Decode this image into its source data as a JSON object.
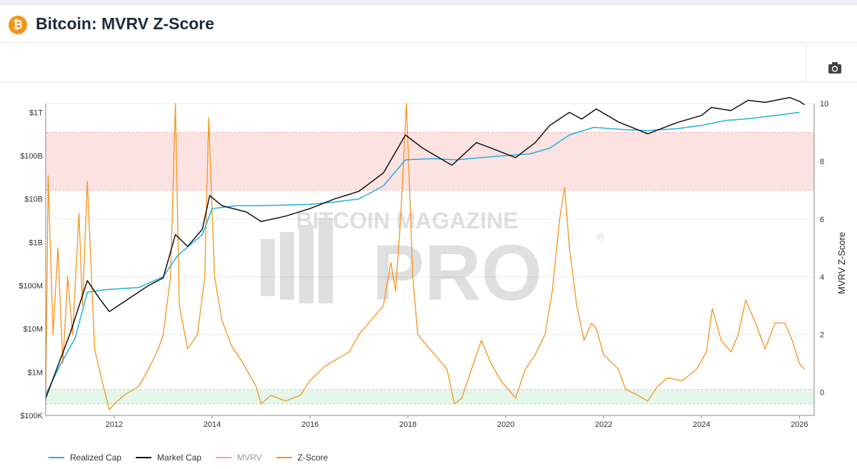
{
  "header": {
    "logo_glyph": "₿",
    "title": "Bitcoin: MVRV Z-Score"
  },
  "toolbar": {
    "camera_icon": "camera-icon"
  },
  "watermark": {
    "line1": "BITCOIN MAGAZINE",
    "line2": "PRO",
    "mark": "®"
  },
  "colors": {
    "realized_cap": "#22aee0",
    "market_cap": "#111111",
    "mvrv": "#f0a0a0",
    "zscore": "#f7931a",
    "red_band": "#fde2e2",
    "green_band": "#e3f7ea"
  },
  "chart_data": {
    "type": "line",
    "y_left": {
      "scale": "log",
      "ticks": [
        "$100K",
        "$1M",
        "$10M",
        "$100M",
        "$1B",
        "$10B",
        "$100B",
        "$1T"
      ],
      "tick_values": [
        100000,
        1000000,
        10000000,
        100000000,
        1000000000,
        10000000000,
        100000000000,
        1000000000000
      ]
    },
    "y_right": {
      "label": "MVRV Z-Score",
      "ticks": [
        "0",
        "2",
        "4",
        "6",
        "8",
        "10"
      ],
      "tick_values": [
        0,
        2,
        4,
        6,
        8,
        10
      ],
      "range": [
        -0.8,
        10
      ]
    },
    "x_axis": {
      "ticks": [
        "2012",
        "2014",
        "2016",
        "2018",
        "2020",
        "2022",
        "2024",
        "2026"
      ],
      "range": [
        2010.6,
        2026.3
      ]
    },
    "bands": [
      {
        "name": "overvalued",
        "z_from": 7,
        "z_to": 9
      },
      {
        "name": "undervalued",
        "z_from": -0.4,
        "z_to": 0.1
      }
    ],
    "series": [
      {
        "name": "Realized Cap",
        "axis": "left",
        "points": [
          [
            2010.6,
            300000
          ],
          [
            2010.9,
            1500000
          ],
          [
            2011.2,
            6000000
          ],
          [
            2011.45,
            70000000
          ],
          [
            2011.8,
            80000000
          ],
          [
            2012.5,
            90000000
          ],
          [
            2013.0,
            160000000
          ],
          [
            2013.3,
            500000000
          ],
          [
            2013.8,
            1500000000
          ],
          [
            2014.0,
            6000000000
          ],
          [
            2014.5,
            7000000000
          ],
          [
            2015.0,
            7000000000
          ],
          [
            2016.0,
            7500000000
          ],
          [
            2016.5,
            8500000000
          ],
          [
            2017.0,
            10000000000
          ],
          [
            2017.5,
            20000000000
          ],
          [
            2017.95,
            80000000000
          ],
          [
            2018.5,
            85000000000
          ],
          [
            2019.0,
            80000000000
          ],
          [
            2019.5,
            90000000000
          ],
          [
            2020.0,
            100000000000
          ],
          [
            2020.5,
            110000000000
          ],
          [
            2020.9,
            150000000000
          ],
          [
            2021.3,
            300000000000
          ],
          [
            2021.8,
            450000000000
          ],
          [
            2022.4,
            400000000000
          ],
          [
            2022.9,
            380000000000
          ],
          [
            2023.5,
            420000000000
          ],
          [
            2024.0,
            500000000000
          ],
          [
            2024.5,
            650000000000
          ],
          [
            2025.0,
            720000000000
          ],
          [
            2025.5,
            850000000000
          ],
          [
            2026.0,
            1000000000000
          ]
        ]
      },
      {
        "name": "Market Cap",
        "axis": "left",
        "points": [
          [
            2010.6,
            250000
          ],
          [
            2010.9,
            2000000
          ],
          [
            2011.1,
            8000000
          ],
          [
            2011.45,
            130000000
          ],
          [
            2011.7,
            50000000
          ],
          [
            2011.9,
            25000000
          ],
          [
            2012.3,
            50000000
          ],
          [
            2012.7,
            100000000
          ],
          [
            2013.0,
            150000000
          ],
          [
            2013.25,
            1500000000
          ],
          [
            2013.5,
            800000000
          ],
          [
            2013.8,
            2000000000
          ],
          [
            2013.95,
            12000000000
          ],
          [
            2014.2,
            7000000000
          ],
          [
            2014.7,
            5000000000
          ],
          [
            2015.0,
            3000000000
          ],
          [
            2015.5,
            4000000000
          ],
          [
            2016.0,
            6000000000
          ],
          [
            2016.5,
            10000000000
          ],
          [
            2017.0,
            15000000000
          ],
          [
            2017.5,
            40000000000
          ],
          [
            2017.95,
            300000000000
          ],
          [
            2018.3,
            150000000000
          ],
          [
            2018.9,
            60000000000
          ],
          [
            2019.4,
            200000000000
          ],
          [
            2019.7,
            150000000000
          ],
          [
            2020.2,
            90000000000
          ],
          [
            2020.6,
            200000000000
          ],
          [
            2020.9,
            500000000000
          ],
          [
            2021.3,
            1000000000000
          ],
          [
            2021.55,
            700000000000
          ],
          [
            2021.85,
            1200000000000
          ],
          [
            2022.3,
            600000000000
          ],
          [
            2022.9,
            320000000000
          ],
          [
            2023.5,
            580000000000
          ],
          [
            2024.0,
            850000000000
          ],
          [
            2024.2,
            1300000000000
          ],
          [
            2024.6,
            1100000000000
          ],
          [
            2024.95,
            1900000000000
          ],
          [
            2025.3,
            1700000000000
          ],
          [
            2025.8,
            2200000000000
          ],
          [
            2026.0,
            1800000000000
          ],
          [
            2026.1,
            1500000000000
          ]
        ]
      },
      {
        "name": "MVRV",
        "axis": "right",
        "hidden": true,
        "points": []
      },
      {
        "name": "Z-Score",
        "axis": "right",
        "points": [
          [
            2010.6,
            -0.3
          ],
          [
            2010.65,
            7.5
          ],
          [
            2010.75,
            2
          ],
          [
            2010.85,
            5
          ],
          [
            2010.95,
            1
          ],
          [
            2011.05,
            4
          ],
          [
            2011.15,
            2
          ],
          [
            2011.28,
            6.2
          ],
          [
            2011.35,
            3
          ],
          [
            2011.45,
            7.3
          ],
          [
            2011.6,
            1.5
          ],
          [
            2011.75,
            0.4
          ],
          [
            2011.9,
            -0.6
          ],
          [
            2012.0,
            -0.4
          ],
          [
            2012.2,
            -0.1
          ],
          [
            2012.5,
            0.2
          ],
          [
            2012.7,
            0.8
          ],
          [
            2012.9,
            1.5
          ],
          [
            2013.0,
            2
          ],
          [
            2013.15,
            4
          ],
          [
            2013.25,
            10
          ],
          [
            2013.33,
            3
          ],
          [
            2013.5,
            1.5
          ],
          [
            2013.7,
            2
          ],
          [
            2013.85,
            4
          ],
          [
            2013.93,
            9.5
          ],
          [
            2014.05,
            4
          ],
          [
            2014.2,
            2.5
          ],
          [
            2014.4,
            1.6
          ],
          [
            2014.6,
            1.1
          ],
          [
            2014.9,
            0.2
          ],
          [
            2015.0,
            -0.4
          ],
          [
            2015.2,
            -0.1
          ],
          [
            2015.5,
            -0.3
          ],
          [
            2015.8,
            -0.1
          ],
          [
            2016.0,
            0.4
          ],
          [
            2016.3,
            0.9
          ],
          [
            2016.5,
            1.1
          ],
          [
            2016.8,
            1.4
          ],
          [
            2017.0,
            2
          ],
          [
            2017.3,
            2.6
          ],
          [
            2017.5,
            3
          ],
          [
            2017.65,
            4.5
          ],
          [
            2017.75,
            3.5
          ],
          [
            2017.85,
            6
          ],
          [
            2017.97,
            10
          ],
          [
            2018.1,
            4
          ],
          [
            2018.2,
            2
          ],
          [
            2018.4,
            1.6
          ],
          [
            2018.6,
            1.2
          ],
          [
            2018.8,
            0.8
          ],
          [
            2018.95,
            -0.4
          ],
          [
            2019.1,
            -0.2
          ],
          [
            2019.3,
            0.8
          ],
          [
            2019.5,
            1.8
          ],
          [
            2019.7,
            1.0
          ],
          [
            2019.9,
            0.4
          ],
          [
            2020.2,
            -0.2
          ],
          [
            2020.4,
            0.8
          ],
          [
            2020.6,
            1.3
          ],
          [
            2020.8,
            2
          ],
          [
            2020.95,
            3.5
          ],
          [
            2021.1,
            6
          ],
          [
            2021.2,
            7.1
          ],
          [
            2021.3,
            5
          ],
          [
            2021.45,
            3
          ],
          [
            2021.6,
            1.8
          ],
          [
            2021.75,
            2.4
          ],
          [
            2021.85,
            2.2
          ],
          [
            2022.0,
            1.3
          ],
          [
            2022.3,
            0.8
          ],
          [
            2022.45,
            0.1
          ],
          [
            2022.7,
            -0.1
          ],
          [
            2022.9,
            -0.3
          ],
          [
            2023.1,
            0.2
          ],
          [
            2023.3,
            0.5
          ],
          [
            2023.6,
            0.4
          ],
          [
            2023.9,
            0.8
          ],
          [
            2024.1,
            1.4
          ],
          [
            2024.22,
            2.9
          ],
          [
            2024.4,
            1.8
          ],
          [
            2024.6,
            1.4
          ],
          [
            2024.75,
            2
          ],
          [
            2024.9,
            3.2
          ],
          [
            2025.1,
            2.4
          ],
          [
            2025.3,
            1.5
          ],
          [
            2025.5,
            2.4
          ],
          [
            2025.7,
            2.4
          ],
          [
            2025.85,
            1.8
          ],
          [
            2026.0,
            1.0
          ],
          [
            2026.1,
            0.8
          ]
        ]
      }
    ]
  },
  "legend": [
    {
      "label": "Realized Cap",
      "color": "#22aee0"
    },
    {
      "label": "Market Cap",
      "color": "#111111"
    },
    {
      "label": "MVRV",
      "color": "#f0a0a0"
    },
    {
      "label": "Z-Score",
      "color": "#f7931a"
    }
  ]
}
